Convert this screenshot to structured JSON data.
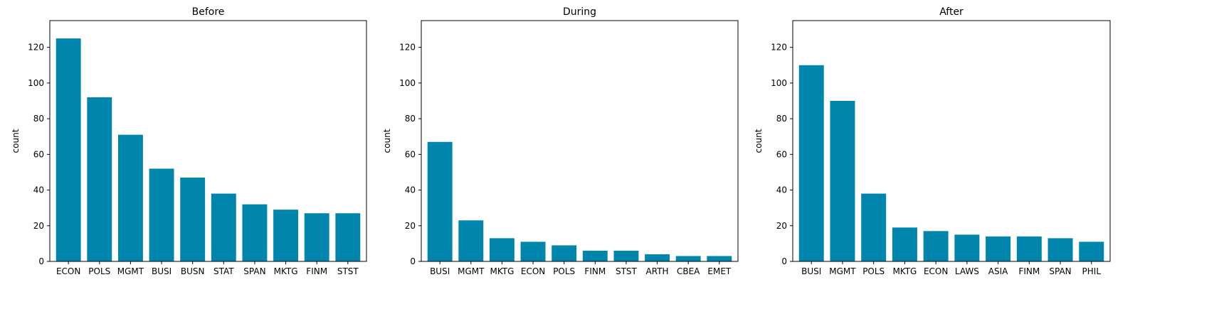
{
  "colors": {
    "bar": "#0086ad",
    "axis": "#000000"
  },
  "chart_data": [
    {
      "type": "bar",
      "title": "Before",
      "xlabel": "",
      "ylabel": "count",
      "ylim": [
        0,
        135
      ],
      "yticks": [
        0,
        20,
        40,
        60,
        80,
        100,
        120
      ],
      "grid": false,
      "categories": [
        "ECON",
        "POLS",
        "MGMT",
        "BUSI",
        "BUSN",
        "STAT",
        "SPAN",
        "MKTG",
        "FINM",
        "STST"
      ],
      "values": [
        125,
        92,
        71,
        52,
        47,
        38,
        32,
        29,
        27,
        27
      ]
    },
    {
      "type": "bar",
      "title": "During",
      "xlabel": "",
      "ylabel": "count",
      "ylim": [
        0,
        135
      ],
      "yticks": [
        0,
        20,
        40,
        60,
        80,
        100,
        120
      ],
      "grid": false,
      "categories": [
        "BUSI",
        "MGMT",
        "MKTG",
        "ECON",
        "POLS",
        "FINM",
        "STST",
        "ARTH",
        "CBEA",
        "EMET"
      ],
      "values": [
        67,
        23,
        13,
        11,
        9,
        6,
        6,
        4,
        3,
        3
      ]
    },
    {
      "type": "bar",
      "title": "After",
      "xlabel": "",
      "ylabel": "count",
      "ylim": [
        0,
        135
      ],
      "yticks": [
        0,
        20,
        40,
        60,
        80,
        100,
        120
      ],
      "grid": false,
      "categories": [
        "BUSI",
        "MGMT",
        "POLS",
        "MKTG",
        "ECON",
        "LAWS",
        "ASIA",
        "FINM",
        "SPAN",
        "PHIL"
      ],
      "values": [
        110,
        90,
        38,
        19,
        17,
        15,
        14,
        14,
        13,
        11
      ]
    }
  ]
}
